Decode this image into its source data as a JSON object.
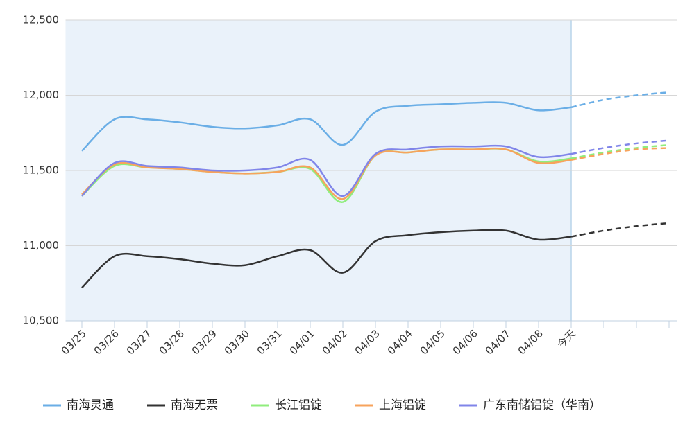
{
  "chart_data": {
    "type": "line",
    "categories": [
      "03/25",
      "03/26",
      "03/27",
      "03/28",
      "03/29",
      "03/30",
      "03/31",
      "04/01",
      "04/02",
      "04/03",
      "04/04",
      "04/05",
      "04/06",
      "04/07",
      "04/08",
      "今天",
      null,
      null,
      null
    ],
    "ylim": [
      10500,
      12500
    ],
    "yticks": [
      {
        "value": 10500,
        "label": "10,500"
      },
      {
        "value": 11000,
        "label": "11,000"
      },
      {
        "value": 11500,
        "label": "11,500"
      },
      {
        "value": 12000,
        "label": "12,000"
      },
      {
        "value": 12500,
        "label": "12,500"
      }
    ],
    "grid": true,
    "series": [
      {
        "name": "南海灵通",
        "color": "#6aaee6",
        "values": [
          11630,
          11840,
          11840,
          11820,
          11790,
          11780,
          11800,
          11840,
          11670,
          11890,
          11930,
          11940,
          11950,
          11950,
          11900,
          11920,
          11970,
          12000,
          12020
        ]
      },
      {
        "name": "南海无票",
        "color": "#333333",
        "values": [
          10720,
          10930,
          10930,
          10910,
          10880,
          10870,
          10930,
          10970,
          10820,
          11030,
          11070,
          11090,
          11100,
          11100,
          11040,
          11060,
          11100,
          11130,
          11150
        ]
      },
      {
        "name": "长江铝锭",
        "color": "#90ed7d",
        "values": [
          11330,
          11530,
          11520,
          11510,
          11490,
          11480,
          11490,
          11510,
          11290,
          11600,
          11620,
          11640,
          11640,
          11640,
          11560,
          11580,
          11620,
          11650,
          11670
        ]
      },
      {
        "name": "上海铝锭",
        "color": "#f7a35c",
        "values": [
          11340,
          11540,
          11520,
          11510,
          11490,
          11480,
          11490,
          11520,
          11310,
          11600,
          11620,
          11640,
          11640,
          11640,
          11550,
          11570,
          11610,
          11640,
          11650
        ]
      },
      {
        "name": "广东南储铝锭（华南）",
        "color": "#8085e9",
        "values": [
          11330,
          11550,
          11530,
          11520,
          11500,
          11500,
          11520,
          11570,
          11330,
          11610,
          11640,
          11660,
          11660,
          11660,
          11590,
          11610,
          11650,
          11680,
          11700
        ]
      }
    ]
  }
}
